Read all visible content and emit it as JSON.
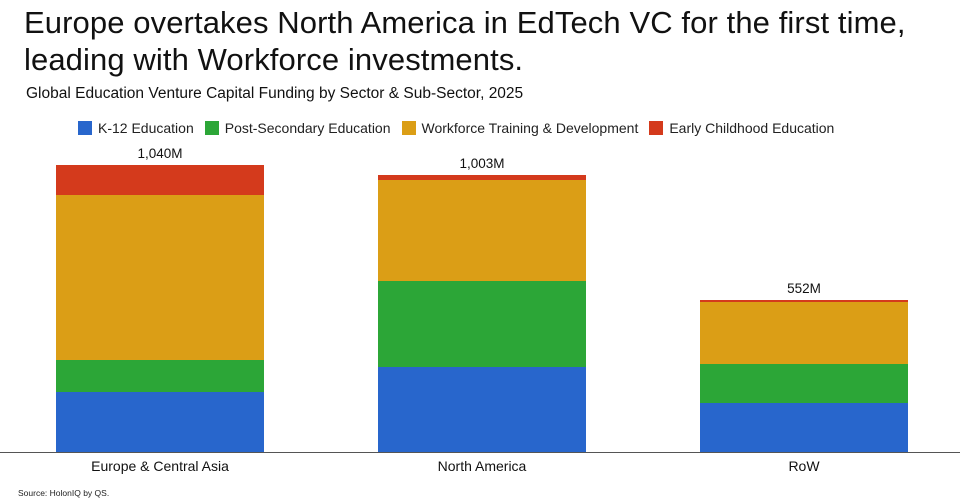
{
  "title": "Europe overtakes North America in EdTech VC for the first time, leading with Workforce investments.",
  "subtitle": "Global Education Venture Capital Funding by Sector & Sub-Sector, 2025",
  "source": "Source: HolonIQ by QS.",
  "legend": [
    {
      "label": "K-12 Education",
      "color": "#2866CC"
    },
    {
      "label": "Post-Secondary Education",
      "color": "#2CA637"
    },
    {
      "label": "Workforce Training & Development",
      "color": "#DB9E16"
    },
    {
      "label": "Early Childhood Education",
      "color": "#D43A1C"
    }
  ],
  "chart_data": {
    "type": "bar",
    "stacked": true,
    "title": "Europe overtakes North America in EdTech VC for the first time, leading with Workforce investments.",
    "subtitle": "Global Education Venture Capital Funding by Sector & Sub-Sector, 2025",
    "xlabel": "",
    "ylabel": "",
    "unit": "USD millions",
    "categories": [
      "Europe & Central Asia",
      "North America",
      "RoW"
    ],
    "totals": [
      1040,
      1003,
      552
    ],
    "total_labels": [
      "1,040M",
      "1,003M",
      "552M"
    ],
    "series": [
      {
        "name": "K-12 Education",
        "color": "#2866CC",
        "values": [
          217,
          308,
          178
        ]
      },
      {
        "name": "Post-Secondary Education",
        "color": "#2CA637",
        "values": [
          116,
          312,
          141
        ]
      },
      {
        "name": "Workforce Training & Development",
        "color": "#DB9E16",
        "values": [
          598,
          365,
          226
        ]
      },
      {
        "name": "Early Childhood Education",
        "color": "#D43A1C",
        "values": [
          109,
          18,
          7
        ]
      }
    ],
    "ylim": [
      0,
      1040
    ],
    "grid": false,
    "legend_position": "top",
    "source": "Source: HolonIQ by QS."
  }
}
